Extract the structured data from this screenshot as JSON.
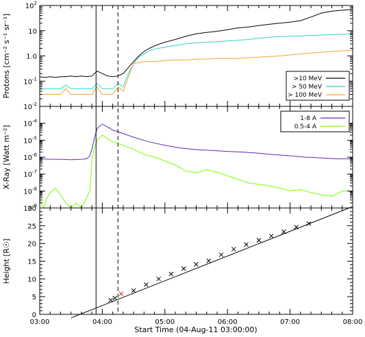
{
  "chart_data": [
    {
      "type": "line",
      "ylabel": "Protons [cm⁻² s⁻¹ sr⁻¹]",
      "yscale": "log",
      "ylim": [
        0.01,
        100
      ],
      "y_ticks": [
        {
          "value": 100,
          "label": "10",
          "exp": "2"
        },
        {
          "value": 10,
          "label": "10",
          "exp": ""
        },
        {
          "value": 1,
          "label": "1.0",
          "exp": ""
        },
        {
          "value": 0.1,
          "label": "10",
          "exp": "-1"
        },
        {
          "value": 0.01,
          "label": "10",
          "exp": "-2"
        }
      ],
      "legend": {
        "placement": "bottom-right",
        "entries": [
          ">10 MeV",
          "> 50 MeV",
          "> 100 MeV"
        ]
      },
      "series": [
        {
          "name": ">10 MeV",
          "color": "#000000",
          "x": [
            "03:00",
            "03:05",
            "03:10",
            "03:15",
            "03:20",
            "03:25",
            "03:30",
            "03:35",
            "03:40",
            "03:45",
            "03:50",
            "03:55",
            "04:00",
            "04:05",
            "04:10",
            "04:15",
            "04:20",
            "04:25",
            "04:30",
            "04:35",
            "04:40",
            "04:45",
            "04:50",
            "04:55",
            "05:00",
            "05:10",
            "05:20",
            "05:30",
            "05:40",
            "05:50",
            "06:00",
            "06:10",
            "06:20",
            "06:30",
            "06:40",
            "06:50",
            "07:00",
            "07:10",
            "07:20",
            "07:30",
            "07:40",
            "07:50",
            "08:00"
          ],
          "y": [
            0.15,
            0.14,
            0.15,
            0.14,
            0.15,
            0.15,
            0.16,
            0.15,
            0.16,
            0.15,
            0.16,
            0.25,
            0.2,
            0.16,
            0.15,
            0.16,
            0.2,
            0.35,
            0.6,
            1.0,
            1.5,
            2.0,
            2.5,
            3.0,
            3.5,
            4.5,
            6,
            7.5,
            8.5,
            9.5,
            11,
            13,
            14,
            16,
            18,
            20,
            22,
            25,
            35,
            50,
            60,
            65,
            70
          ]
        },
        {
          "name": "> 50 MeV",
          "color": "#2fd3c5",
          "x": [
            "03:00",
            "03:10",
            "03:20",
            "03:25",
            "03:30",
            "03:40",
            "03:50",
            "03:55",
            "04:00",
            "04:10",
            "04:15",
            "04:20",
            "04:25",
            "04:30",
            "04:35",
            "04:40",
            "04:45",
            "04:50",
            "05:00",
            "05:10",
            "05:20",
            "05:30",
            "05:40",
            "05:50",
            "06:00",
            "06:10",
            "06:20",
            "06:30",
            "06:40",
            "06:50",
            "07:00",
            "07:10",
            "07:20",
            "07:30",
            "07:40",
            "07:50",
            "08:00"
          ],
          "y": [
            0.05,
            0.05,
            0.05,
            0.07,
            0.05,
            0.05,
            0.05,
            0.08,
            0.05,
            0.05,
            0.08,
            0.06,
            0.2,
            0.5,
            0.9,
            1.2,
            1.6,
            1.9,
            2.2,
            2.6,
            3.0,
            3.3,
            3.5,
            3.7,
            3.9,
            4.2,
            4.5,
            5.0,
            5.5,
            5.8,
            6.0,
            6.2,
            6.5,
            6.8,
            7.0,
            7.2,
            7.5
          ]
        },
        {
          "name": "> 100 MeV",
          "color": "#f5a623",
          "x": [
            "03:00",
            "03:10",
            "03:20",
            "03:25",
            "03:30",
            "03:40",
            "03:50",
            "03:55",
            "04:00",
            "04:10",
            "04:15",
            "04:20",
            "04:25",
            "04:30",
            "04:40",
            "04:50",
            "05:00",
            "05:10",
            "05:20",
            "05:30",
            "05:40",
            "05:50",
            "06:00",
            "06:10",
            "06:20",
            "06:30",
            "06:40",
            "06:50",
            "07:00",
            "07:10",
            "07:20",
            "07:30",
            "07:40",
            "07:50",
            "08:00"
          ],
          "y": [
            0.03,
            0.03,
            0.03,
            0.05,
            0.03,
            0.03,
            0.03,
            0.06,
            0.03,
            0.03,
            0.06,
            0.04,
            0.15,
            0.5,
            0.6,
            0.6,
            0.65,
            0.7,
            0.7,
            0.75,
            0.75,
            0.8,
            0.8,
            0.8,
            0.85,
            0.9,
            0.95,
            1.0,
            1.1,
            1.2,
            1.3,
            1.4,
            1.5,
            1.6,
            1.7
          ]
        }
      ]
    },
    {
      "type": "line",
      "ylabel": "X-Ray [Watt m⁻²]",
      "yscale": "log",
      "ylim": [
        1e-09,
        0.001
      ],
      "y_ticks": [
        {
          "value": 0.0001,
          "label": "10",
          "exp": "-4"
        },
        {
          "value": 1e-05,
          "label": "10",
          "exp": "-5"
        },
        {
          "value": 1e-06,
          "label": "10",
          "exp": "-6"
        },
        {
          "value": 1e-07,
          "label": "10",
          "exp": "-7"
        },
        {
          "value": 1e-08,
          "label": "10",
          "exp": "-8"
        },
        {
          "value": 1e-09,
          "label": "10",
          "exp": "-9"
        }
      ],
      "legend": {
        "placement": "top-right",
        "entries": [
          "1-8 A",
          "0.5-4 A"
        ]
      },
      "series": [
        {
          "name": "1-8 A",
          "color": "#5b2bb5",
          "x": [
            "03:00",
            "03:10",
            "03:20",
            "03:30",
            "03:40",
            "03:45",
            "03:48",
            "03:50",
            "03:52",
            "03:55",
            "04:00",
            "04:05",
            "04:10",
            "04:20",
            "04:30",
            "04:45",
            "05:00",
            "05:15",
            "05:30",
            "05:45",
            "06:00",
            "06:15",
            "06:30",
            "06:45",
            "07:00",
            "07:15",
            "07:30",
            "07:45",
            "08:00"
          ],
          "y": [
            8e-07,
            7.5e-07,
            7.5e-07,
            7e-07,
            7.5e-07,
            8e-07,
            1.2e-06,
            3e-06,
            1e-05,
            5e-05,
            9e-05,
            6e-05,
            4e-05,
            2.5e-05,
            1.5e-05,
            8e-06,
            5e-06,
            3.5e-06,
            2.8e-06,
            2.5e-06,
            2.2e-06,
            2e-06,
            1.7e-06,
            1.4e-06,
            1.2e-06,
            1e-06,
            9e-07,
            8e-07,
            8e-07
          ]
        },
        {
          "name": "0.5-4 A",
          "color": "#7cfc00",
          "x": [
            "03:00",
            "03:04",
            "03:06",
            "03:10",
            "03:15",
            "03:20",
            "03:25",
            "03:30",
            "03:35",
            "03:40",
            "03:45",
            "03:48",
            "03:50",
            "03:52",
            "03:55",
            "04:00",
            "04:05",
            "04:10",
            "04:20",
            "04:30",
            "04:40",
            "04:50",
            "05:00",
            "05:10",
            "05:20",
            "05:30",
            "05:40",
            "05:50",
            "06:00",
            "06:10",
            "06:20",
            "06:30",
            "06:40",
            "06:50",
            "07:00",
            "07:10",
            "07:20",
            "07:30",
            "07:40",
            "07:50",
            "08:00"
          ],
          "y": [
            3e-09,
            1e-09,
            3e-09,
            8e-09,
            1.5e-08,
            6e-09,
            2e-09,
            1e-09,
            2e-09,
            1e-09,
            4e-09,
            1e-08,
            6e-07,
            3e-06,
            1e-05,
            2e-05,
            1.2e-05,
            8e-06,
            5e-06,
            3e-06,
            1.5e-06,
            1e-06,
            6e-07,
            3.5e-07,
            1.5e-07,
            1.2e-07,
            1.8e-07,
            1.3e-07,
            8e-08,
            5e-08,
            3e-08,
            2.5e-08,
            2e-08,
            1.5e-08,
            1e-08,
            1.2e-08,
            8e-09,
            6e-09,
            5e-09,
            1e-08,
            1e-08
          ]
        }
      ]
    },
    {
      "type": "scatter",
      "ylabel": "Height [R☉]",
      "ylim": [
        0,
        30
      ],
      "y_ticks": [
        0,
        5,
        10,
        15,
        20,
        25,
        30
      ],
      "x_ticks": [
        "03:00",
        "04:00",
        "05:00",
        "06:00",
        "07:00",
        "08:00"
      ],
      "xlabel": "Start Time (04-Aug-11 03:00:00)",
      "points": [
        {
          "x": "04:08",
          "y": 4.0,
          "color": "#000000"
        },
        {
          "x": "04:12",
          "y": 4.6,
          "color": "#000000"
        },
        {
          "x": "04:18",
          "y": 5.8,
          "color": "#e02020"
        },
        {
          "x": "04:30",
          "y": 6.7,
          "color": "#000000"
        },
        {
          "x": "04:42",
          "y": 8.4,
          "color": "#000000"
        },
        {
          "x": "04:54",
          "y": 10.0,
          "color": "#000000"
        },
        {
          "x": "05:06",
          "y": 11.4,
          "color": "#000000"
        },
        {
          "x": "05:18",
          "y": 12.9,
          "color": "#000000"
        },
        {
          "x": "05:30",
          "y": 14.1,
          "color": "#000000"
        },
        {
          "x": "05:42",
          "y": 15.1,
          "color": "#000000"
        },
        {
          "x": "05:54",
          "y": 16.8,
          "color": "#000000"
        },
        {
          "x": "06:06",
          "y": 18.4,
          "color": "#000000"
        },
        {
          "x": "06:18",
          "y": 19.7,
          "color": "#000000"
        },
        {
          "x": "06:30",
          "y": 20.9,
          "color": "#000000"
        },
        {
          "x": "06:42",
          "y": 22.1,
          "color": "#000000"
        },
        {
          "x": "06:54",
          "y": 23.3,
          "color": "#000000"
        },
        {
          "x": "07:06",
          "y": 24.6,
          "color": "#000000"
        },
        {
          "x": "07:18",
          "y": 25.6,
          "color": "#000000"
        }
      ],
      "fit_line": {
        "x": [
          "03:30",
          "08:00"
        ],
        "y": [
          -1.0,
          30.4
        ],
        "color": "#000000"
      }
    }
  ],
  "markers": [
    {
      "x": "03:54",
      "style": "solid"
    },
    {
      "x": "04:15",
      "style": "dashed"
    }
  ]
}
